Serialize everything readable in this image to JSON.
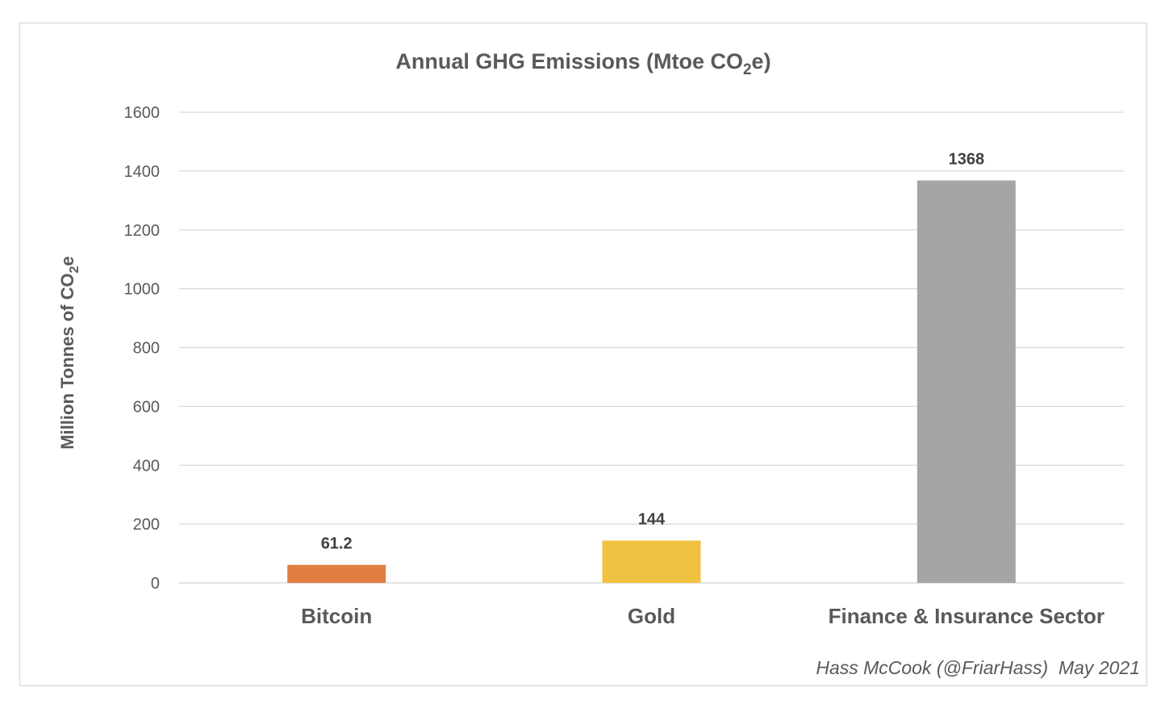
{
  "chart_data": {
    "type": "bar",
    "title_main": "Annual GHG Emissions (Mtoe CO",
    "title_sub": "2",
    "title_end": "e)",
    "ylabel_main": "Million Tonnes of CO",
    "ylabel_sub": "2",
    "ylabel_end": "e",
    "categories": [
      "Bitcoin",
      "Gold",
      "Finance & Insurance Sector"
    ],
    "values": [
      61.2,
      144,
      1368
    ],
    "data_labels": [
      "61.2",
      "144",
      "1368"
    ],
    "colors": [
      "#e07f40",
      "#f1c141",
      "#a5a5a5"
    ],
    "ylim": [
      0,
      1600
    ],
    "yticks": [
      0,
      200,
      400,
      600,
      800,
      1000,
      1200,
      1400,
      1600
    ],
    "grid": true,
    "legend": "none"
  },
  "credit": "Hass McCook (@FriarHass)  May 2021"
}
